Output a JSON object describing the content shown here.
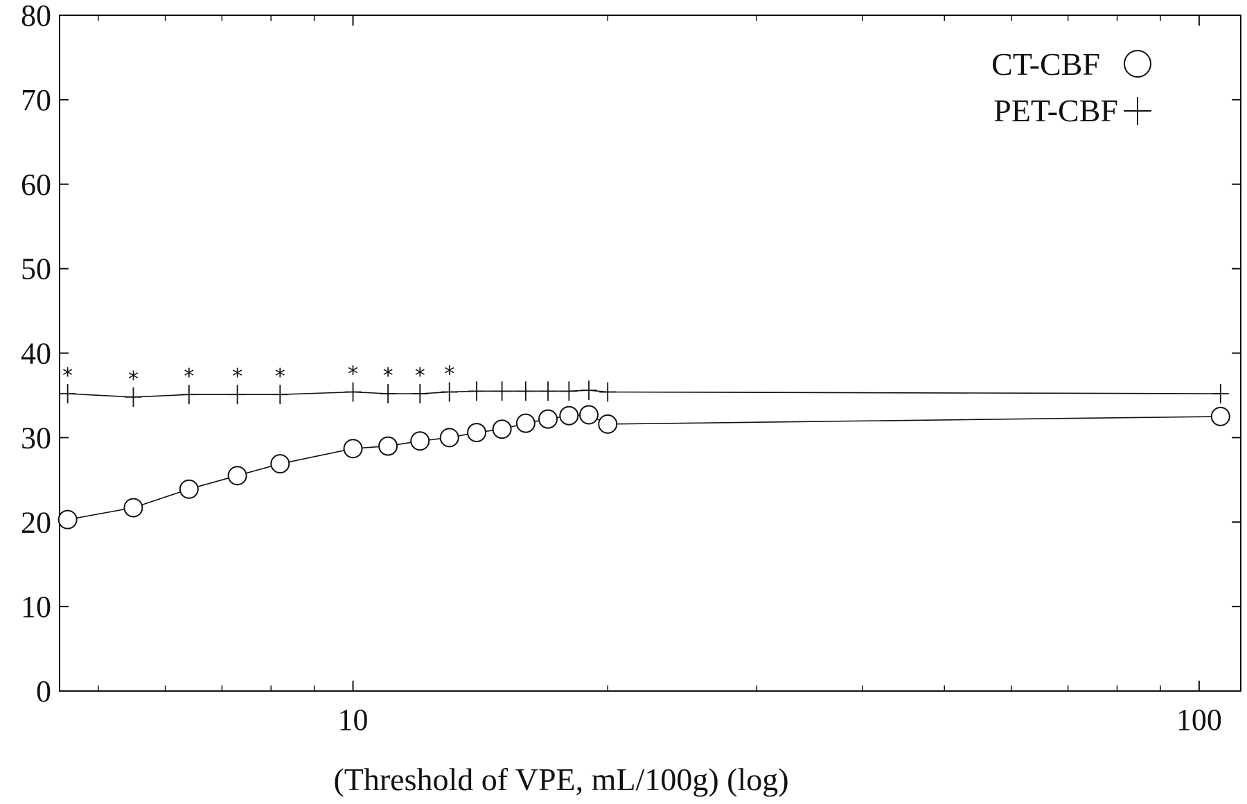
{
  "chart_data": {
    "type": "line",
    "xlabel": "(Threshold of VPE, mL/100g) (log)",
    "ylabel": "",
    "xscale": "log",
    "xlim": [
      4.5,
      112
    ],
    "ylim": [
      0,
      80
    ],
    "xticks": [
      10,
      100
    ],
    "xtick_labels": [
      "10",
      "100"
    ],
    "yticks": [
      0,
      10,
      20,
      30,
      40,
      50,
      60,
      70,
      80
    ],
    "ytick_labels": [
      "0",
      "10",
      "20",
      "30",
      "40",
      "50",
      "60",
      "70",
      "80"
    ],
    "grid": false,
    "legend_position": "top-right",
    "x": [
      4.6,
      5.5,
      6.4,
      7.3,
      8.2,
      10,
      11,
      12,
      13,
      14,
      15,
      16,
      17,
      18,
      19,
      20,
      106
    ],
    "series": [
      {
        "name": "CT-CBF",
        "marker": "circle",
        "values": [
          20.3,
          21.7,
          23.9,
          25.5,
          26.9,
          28.7,
          29.0,
          29.6,
          30.0,
          30.6,
          31.0,
          31.7,
          32.2,
          32.6,
          32.7,
          31.6,
          32.5
        ]
      },
      {
        "name": "PET-CBF",
        "marker": "plus",
        "values": [
          35.2,
          34.8,
          35.1,
          35.1,
          35.1,
          35.4,
          35.2,
          35.2,
          35.4,
          35.5,
          35.5,
          35.5,
          35.5,
          35.5,
          35.6,
          35.4,
          35.2
        ]
      }
    ],
    "annotations": {
      "text": "*",
      "x": [
        4.6,
        5.5,
        6.4,
        7.3,
        8.2,
        10,
        11,
        12,
        13
      ]
    }
  }
}
